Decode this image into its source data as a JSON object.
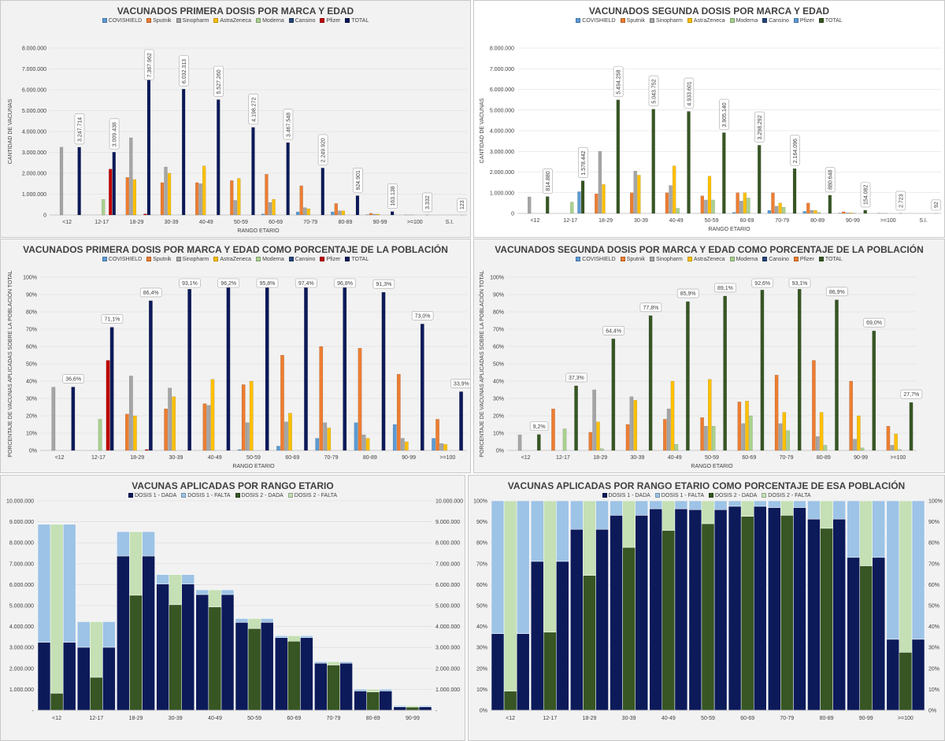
{
  "colors": {
    "COVISHIELD": "#5b9bd5",
    "Sputnik": "#ed7d31",
    "Sinopharm": "#a5a5a5",
    "AstraZeneca": "#ffc000",
    "Moderna": "#a9d18e",
    "Cansino": "#264478",
    "Pfizer": "#c00000",
    "Pfizer2": "#ed7d31",
    "TOTAL1": "#0c1a5a",
    "TOTAL2": "#375623",
    "D1_DADA": "#0c1a5a",
    "D1_FALTA": "#9dc3e6",
    "D2_DADA": "#375623",
    "D2_FALTA": "#c5e0b4"
  },
  "chart_data": [
    {
      "type": "bar",
      "title": "VACUNADOS PRIMERA DOSIS POR MARCA Y EDAD",
      "legend": [
        "COVISHIELD",
        "Sputnik",
        "Sinopharm",
        "AstraZeneca",
        "Moderna",
        "Cansino",
        "Pfizer",
        "TOTAL"
      ],
      "ylabel": "CANTIDAD DE VACUNAS",
      "xlabel": "RANGO ETARIO",
      "ylim": [
        0,
        8000000
      ],
      "yticks": [
        "0",
        "1.000.000",
        "2.000.000",
        "3.000.000",
        "4.000.000",
        "5.000.000",
        "6.000.000",
        "7.000.000",
        "8.000.000"
      ],
      "categories": [
        "<12",
        "12-17",
        "18-29",
        "30-39",
        "40-49",
        "50-59",
        "60-69",
        "70-79",
        "80-89",
        "90-99",
        ">=100",
        "S.I."
      ],
      "series": [
        {
          "name": "COVISHIELD",
          "values": [
            0,
            0,
            0,
            0,
            0,
            0,
            50000,
            150000,
            150000,
            10000,
            0,
            0
          ]
        },
        {
          "name": "Sputnik",
          "values": [
            0,
            0,
            1800000,
            1550000,
            1550000,
            1650000,
            1950000,
            1400000,
            550000,
            80000,
            5000,
            0
          ]
        },
        {
          "name": "Sinopharm",
          "values": [
            3250000,
            0,
            3700000,
            2300000,
            1500000,
            700000,
            600000,
            350000,
            200000,
            40000,
            3000,
            0
          ]
        },
        {
          "name": "AstraZeneca",
          "values": [
            0,
            0,
            1700000,
            2000000,
            2350000,
            1750000,
            750000,
            300000,
            200000,
            40000,
            2000,
            0
          ]
        },
        {
          "name": "Moderna",
          "values": [
            0,
            750000,
            0,
            0,
            0,
            0,
            0,
            0,
            0,
            0,
            0,
            0
          ]
        },
        {
          "name": "Cansino",
          "values": [
            0,
            0,
            0,
            0,
            0,
            0,
            0,
            0,
            0,
            0,
            0,
            0
          ]
        },
        {
          "name": "Pfizer",
          "values": [
            0,
            2200000,
            50000,
            0,
            0,
            0,
            0,
            0,
            0,
            0,
            0,
            0
          ]
        },
        {
          "name": "TOTAL",
          "values": [
            3247714,
            3009438,
            7367962,
            6032313,
            5527260,
            4198272,
            3467548,
            2249920,
            924901,
            163138,
            3332,
            123
          ]
        }
      ],
      "total_labels": [
        "3.247.714",
        "3.009.438",
        "7.367.962",
        "6.032.313",
        "5.527.260",
        "4.198.272",
        "3.467.548",
        "2.249.920",
        "924.901",
        "163.138",
        "3.332",
        "123"
      ]
    },
    {
      "type": "bar",
      "title": "VACUNADOS SEGUNDA DOSIS POR MARCA Y EDAD",
      "legend": [
        "COVISHIELD",
        "Sputnik",
        "Sinopharm",
        "AstraZeneca",
        "Moderna",
        "Cansino",
        "Pfizer",
        "TOTAL"
      ],
      "ylabel": "CANTIDAD DE VACUNAS",
      "xlabel": "RANGO ETARIO",
      "ylim": [
        0,
        8000000
      ],
      "yticks": [
        "0",
        "1.000.000",
        "2.000.000",
        "3.000.000",
        "4.000.000",
        "5.000.000",
        "6.000.000",
        "7.000.000",
        "8.000.000"
      ],
      "categories": [
        "<12",
        "12-17",
        "18-29",
        "30-39",
        "40-49",
        "50-59",
        "60-69",
        "70-79",
        "80-89",
        "90-99",
        ">=100",
        "S.I."
      ],
      "series": [
        {
          "name": "COVISHIELD",
          "values": [
            0,
            0,
            0,
            0,
            0,
            0,
            50000,
            150000,
            100000,
            10000,
            0,
            0
          ]
        },
        {
          "name": "Sputnik",
          "values": [
            0,
            0,
            950000,
            1000000,
            1000000,
            850000,
            1000000,
            1000000,
            500000,
            80000,
            5000,
            0
          ]
        },
        {
          "name": "Sinopharm",
          "values": [
            800000,
            0,
            3000000,
            2050000,
            1350000,
            650000,
            600000,
            350000,
            150000,
            30000,
            2000,
            0
          ]
        },
        {
          "name": "AstraZeneca",
          "values": [
            0,
            0,
            1400000,
            1850000,
            2300000,
            1800000,
            1000000,
            500000,
            150000,
            30000,
            1000,
            0
          ]
        },
        {
          "name": "Moderna",
          "values": [
            0,
            550000,
            0,
            0,
            250000,
            650000,
            750000,
            300000,
            50000,
            10000,
            0,
            0
          ]
        },
        {
          "name": "Cansino",
          "values": [
            0,
            0,
            0,
            0,
            0,
            0,
            0,
            0,
            0,
            0,
            0,
            0
          ]
        },
        {
          "name": "Pfizer",
          "values": [
            0,
            1050000,
            0,
            0,
            0,
            0,
            0,
            0,
            0,
            0,
            0,
            0
          ]
        },
        {
          "name": "TOTAL",
          "values": [
            814880,
            1578442,
            5494258,
            5043752,
            4933601,
            3905140,
            3298292,
            2164096,
            880648,
            154082,
            2723,
            92
          ]
        }
      ],
      "total_labels": [
        "814.880",
        "1.578.442",
        "5.494.258",
        "5.043.752",
        "4.933.601",
        "3.905.140",
        "3.298.292",
        "2.164.096",
        "880.648",
        "154.082",
        "2.723",
        "92"
      ]
    },
    {
      "type": "bar",
      "title": "VACUNADOS PRIMERA DOSIS POR MARCA Y EDAD COMO PORCENTAJE DE LA POBLACIÓN",
      "legend": [
        "COVISHIELD",
        "Sputnik",
        "Sinopharm",
        "AstraZeneca",
        "Moderna",
        "Cansino",
        "Pfizer",
        "TOTAL"
      ],
      "ylabel": "PORCENTAJE DE VACUNAS APLICADAS SOBRE LA POBLACIÓN TOTAL",
      "xlabel": "RANGO ETARIO",
      "ylim": [
        0,
        100
      ],
      "yticks": [
        "0%",
        "10%",
        "20%",
        "30%",
        "40%",
        "50%",
        "60%",
        "70%",
        "80%",
        "90%",
        "100%"
      ],
      "categories": [
        "<12",
        "12-17",
        "18-29",
        "30-39",
        "40-49",
        "50-59",
        "60-69",
        "70-79",
        "80-89",
        "90-99",
        ">=100"
      ],
      "series": [
        {
          "name": "COVISHIELD",
          "values": [
            0,
            0,
            0,
            0,
            0,
            0.5,
            2.5,
            7,
            16,
            15,
            7
          ]
        },
        {
          "name": "Sputnik",
          "values": [
            0,
            0,
            21,
            24,
            27,
            38,
            55,
            60,
            59,
            44,
            18
          ]
        },
        {
          "name": "Sinopharm",
          "values": [
            36.5,
            0,
            43,
            36,
            26,
            16,
            16.5,
            16,
            9,
            7,
            4
          ]
        },
        {
          "name": "AstraZeneca",
          "values": [
            0,
            0,
            20,
            31,
            41,
            40,
            21.5,
            13,
            7,
            5,
            3.5
          ]
        },
        {
          "name": "Moderna",
          "values": [
            0,
            18,
            0,
            0,
            0,
            0,
            0,
            0,
            0,
            0,
            0
          ]
        },
        {
          "name": "Cansino",
          "values": [
            0,
            0,
            0,
            0,
            0,
            0,
            0,
            0,
            0,
            0,
            0
          ]
        },
        {
          "name": "Pfizer",
          "values": [
            0,
            52,
            0.5,
            0,
            0,
            0,
            0,
            0,
            0,
            0,
            0
          ]
        },
        {
          "name": "TOTAL",
          "values": [
            36.6,
            71.1,
            86.4,
            93.1,
            96.2,
            95.8,
            97.4,
            96.8,
            91.3,
            73.0,
            33.9
          ]
        }
      ],
      "total_labels": [
        "36,6%",
        "71,1%",
        "86,4%",
        "93,1%",
        "96,2%",
        "95,8%",
        "97,4%",
        "96,8%",
        "91,3%",
        "73,0%",
        "33,9%"
      ]
    },
    {
      "type": "bar",
      "title": "VACUNADOS SEGUNDA DOSIS POR MARCA Y EDAD COMO PORCENTAJE DE LA POBLACIÓN",
      "legend": [
        "COVISHIELD",
        "Sputnik",
        "Sinopharm",
        "AstraZeneca",
        "Moderna",
        "Cansino",
        "Pfizer",
        "TOTAL"
      ],
      "ylabel": "PORCENTAJE DE VACUNAS APLICADAS SOBRE LA POBLACIÓN TOTAL",
      "xlabel": "RANGO ETARIO",
      "ylim": [
        0,
        100
      ],
      "yticks": [
        "0%",
        "10%",
        "20%",
        "30%",
        "40%",
        "50%",
        "60%",
        "70%",
        "80%",
        "90%",
        "100%"
      ],
      "categories": [
        "<12",
        "12-17",
        "18-29",
        "30-39",
        "40-49",
        "50-59",
        "60-69",
        "70-79",
        "80-89",
        "90-99",
        ">=100"
      ],
      "series": [
        {
          "name": "COVISHIELD",
          "values": [
            0,
            0,
            0,
            0,
            0,
            0,
            0,
            0,
            0,
            0,
            0
          ]
        },
        {
          "name": "Sputnik",
          "values": [
            0,
            24,
            10.5,
            15,
            18,
            19,
            28,
            43.5,
            52,
            40,
            14
          ]
        },
        {
          "name": "Sinopharm",
          "values": [
            9,
            0,
            35,
            31,
            24,
            14,
            15.5,
            15.5,
            8,
            6.5,
            3
          ]
        },
        {
          "name": "AstraZeneca",
          "values": [
            0,
            0,
            16.5,
            29,
            40,
            41,
            28.5,
            22,
            22,
            20,
            9.5
          ]
        },
        {
          "name": "Moderna",
          "values": [
            0,
            12.5,
            1,
            0,
            3.5,
            14,
            20,
            11.5,
            3,
            1.5,
            0.5
          ]
        },
        {
          "name": "Cansino",
          "values": [
            0,
            0,
            0,
            0,
            0,
            0,
            0,
            0,
            0,
            0,
            0
          ]
        },
        {
          "name": "Pfizer",
          "values": [
            0,
            0,
            0,
            0,
            0,
            0,
            0,
            0,
            0,
            0,
            0
          ]
        },
        {
          "name": "TOTAL",
          "values": [
            9.2,
            37.3,
            64.4,
            77.8,
            85.9,
            89.1,
            92.6,
            93.1,
            86.9,
            69.0,
            27.7
          ]
        }
      ],
      "total_labels": [
        "9,2%",
        "37,3%",
        "64,4%",
        "77,8%",
        "85,9%",
        "89,1%",
        "92,6%",
        "93,1%",
        "86,9%",
        "69,0%",
        "27,7%"
      ]
    },
    {
      "type": "bar",
      "stacked": true,
      "title": "VACUNAS APLICADAS POR RANGO ETARIO",
      "legend": [
        "DOSIS 1 - DADA",
        "DOSIS 1 - FALTA",
        "DOSIS 2 - DADA",
        "DOSIS 2 - FALTA"
      ],
      "ylim": [
        0,
        10000000
      ],
      "yticks": [
        "-",
        "1.000.000",
        "2.000.000",
        "3.000.000",
        "4.000.000",
        "5.000.000",
        "6.000.000",
        "7.000.000",
        "8.000.000",
        "9.000.000",
        "10.000.000"
      ],
      "categories": [
        "<12",
        "12-17",
        "18-29",
        "30-39",
        "40-49",
        "50-59",
        "60-69",
        "70-79",
        "80-89",
        "90-99"
      ],
      "population": [
        8880000,
        4230000,
        8530000,
        6480000,
        5750000,
        4380000,
        3560000,
        2320000,
        1010000,
        223000
      ],
      "dose1_given": [
        3247714,
        3009438,
        7367962,
        6032313,
        5527260,
        4198272,
        3467548,
        2249920,
        924901,
        163138
      ],
      "dose2_given": [
        814880,
        1578442,
        5494258,
        5043752,
        4933601,
        3905140,
        3298292,
        2164096,
        880648,
        154082
      ]
    },
    {
      "type": "bar",
      "stacked": true,
      "title": "VACUNAS APLICADAS POR RANGO ETARIO COMO PORCENTAJE DE ESA POBLACIÓN",
      "legend": [
        "DOSIS 1 - DADA",
        "DOSIS 1 - FALTA",
        "DOSIS 2 - DADA",
        "DOSIS 2 - FALTA"
      ],
      "ylim": [
        0,
        100
      ],
      "yticks": [
        "0%",
        "10%",
        "20%",
        "30%",
        "40%",
        "50%",
        "60%",
        "70%",
        "80%",
        "90%",
        "100%"
      ],
      "categories": [
        "<12",
        "12-17",
        "18-29",
        "30-39",
        "40-49",
        "50-59",
        "60-69",
        "70-79",
        "80-89",
        "90-99",
        ">=100"
      ],
      "dose1_pct": [
        36.6,
        71.1,
        86.4,
        93.1,
        96.2,
        95.8,
        97.4,
        96.8,
        91.3,
        73.0,
        33.9
      ],
      "dose2_pct": [
        9.2,
        37.3,
        64.4,
        77.8,
        85.9,
        89.1,
        92.6,
        93.1,
        86.9,
        69.0,
        27.7
      ]
    }
  ]
}
